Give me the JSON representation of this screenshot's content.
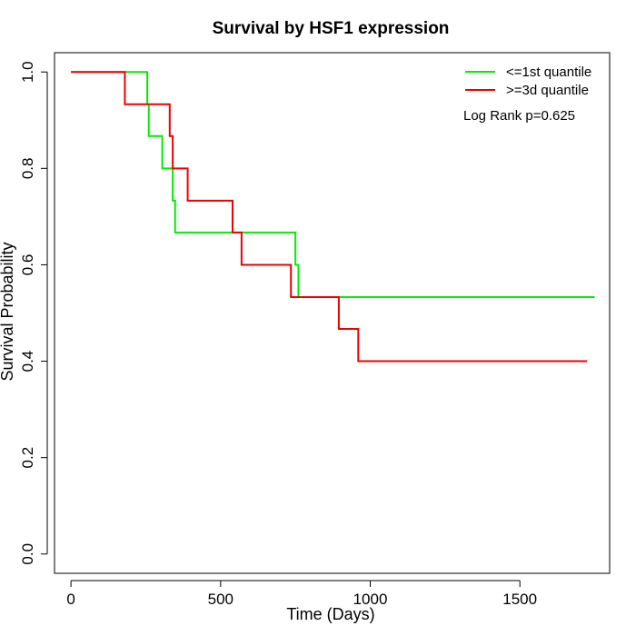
{
  "chart_data": {
    "type": "line",
    "title": "Survival by HSF1 expression",
    "xlabel": "Time (Days)",
    "ylabel": "Survival Probability",
    "xlim": [
      -55,
      1800
    ],
    "ylim": [
      -0.04,
      1.04
    ],
    "xticks": [
      0,
      500,
      1000,
      1500
    ],
    "xtick_labels": [
      "0",
      "500",
      "1000",
      "1500"
    ],
    "yticks": [
      0.0,
      0.2,
      0.4,
      0.6,
      0.8,
      1.0
    ],
    "ytick_labels": [
      "0.0",
      "0.2",
      "0.4",
      "0.6",
      "0.8",
      "1.0"
    ],
    "grid": false,
    "legend_position": "top-right",
    "annotation": "Log Rank p=0.625",
    "series": [
      {
        "name": "<=1st quantile",
        "color": "#00ee00",
        "step": "post",
        "x": [
          0,
          255,
          260,
          305,
          340,
          348,
          750,
          760,
          1750
        ],
        "y": [
          1.0,
          0.933,
          0.867,
          0.8,
          0.733,
          0.667,
          0.6,
          0.533,
          0.533
        ]
      },
      {
        "name": ">=3d quantile",
        "color": "#ee0000",
        "step": "post",
        "x": [
          0,
          180,
          330,
          340,
          390,
          540,
          570,
          735,
          895,
          960,
          1725
        ],
        "y": [
          1.0,
          0.933,
          0.867,
          0.8,
          0.733,
          0.667,
          0.6,
          0.533,
          0.467,
          0.4,
          0.4
        ]
      }
    ]
  }
}
